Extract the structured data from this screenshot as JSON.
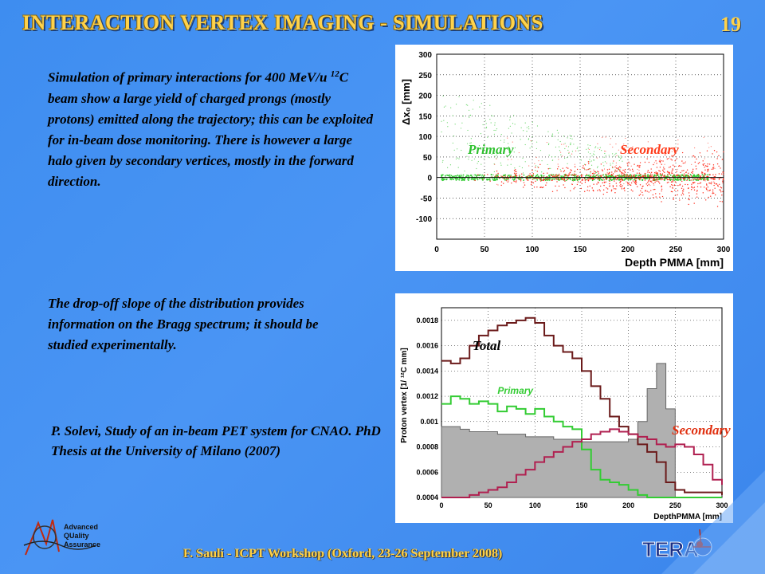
{
  "slide": {
    "title": "INTERACTION VERTEX IMAGING - SIMULATIONS",
    "page_number": "19",
    "paragraph1_before": "Simulation of primary interactions for 400 MeV/u ",
    "paragraph1_sup": "12",
    "paragraph1_after": "C beam show a large yield of charged prongs (mostly protons) emitted along the trajectory; this can be exploited for in-beam dose monitoring. There is however a large halo given by secondary vertices, mostly in the forward direction.",
    "paragraph2": "The drop-off slope of the distribution provides information on the Bragg spectrum; it should be studied experimentally.",
    "reference": "P. Solevi, Study of an in-beam PET system for CNAO. PhD Thesis at the University of Milano (2007)",
    "footer": "F. Sauli - ICPT Workshop (Oxford, 23-26 September 2008)",
    "logo_left_text": [
      "Advanced",
      "QUality",
      "Assurance"
    ],
    "logo_right_text": "TERA"
  },
  "chart_data": [
    {
      "type": "scatter",
      "xlabel": "Depth PMMA [mm]",
      "ylabel": "Δx₀ [mm]",
      "xlim": [
        0,
        300
      ],
      "ylim": [
        -150,
        300
      ],
      "xticks": [
        "0",
        "50",
        "100",
        "150",
        "200",
        "250",
        "300"
      ],
      "yticks": [
        "-100",
        "-50",
        "0",
        "50",
        "100",
        "150",
        "200",
        "250",
        "300"
      ],
      "series": [
        {
          "name": "Primary",
          "color": "#33cc33",
          "description_points": [
            [
              10,
              0
            ],
            [
              40,
              2
            ],
            [
              80,
              -1
            ],
            [
              120,
              1
            ],
            [
              160,
              0
            ],
            [
              190,
              -2
            ],
            [
              220,
              3
            ],
            [
              250,
              -1
            ],
            [
              280,
              1
            ]
          ]
        },
        {
          "name": "Secondary",
          "color": "#ff2a1a",
          "description_points": [
            [
              60,
              5
            ],
            [
              120,
              -10
            ],
            [
              180,
              12
            ],
            [
              220,
              -25
            ],
            [
              260,
              30
            ],
            [
              290,
              -15
            ]
          ]
        }
      ],
      "grid": true
    },
    {
      "type": "line",
      "xlabel": "DepthPMMA [mm]",
      "ylabel": "Proton vertex [1/ ¹²C mm]",
      "xlim": [
        0,
        300
      ],
      "ylim": [
        0.0004,
        0.0019
      ],
      "xticks": [
        "0",
        "50",
        "100",
        "150",
        "200",
        "250",
        "300"
      ],
      "yticks": [
        "0.0004",
        "0.0006",
        "0.0008",
        "0.001",
        "0.0012",
        "0.0014",
        "0.0016",
        "0.0018"
      ],
      "x": [
        0,
        10,
        20,
        30,
        40,
        50,
        60,
        70,
        80,
        90,
        100,
        110,
        120,
        130,
        140,
        150,
        160,
        170,
        180,
        190,
        200,
        210,
        220,
        230,
        240,
        250,
        260,
        270,
        280,
        290,
        300
      ],
      "series": [
        {
          "name": "Total",
          "color": "#6b1a1a",
          "values": [
            0.00148,
            0.00146,
            0.0015,
            0.0016,
            0.00168,
            0.00172,
            0.00176,
            0.00178,
            0.0018,
            0.00182,
            0.00178,
            0.00168,
            0.0016,
            0.00155,
            0.0015,
            0.0014,
            0.00128,
            0.00118,
            0.00104,
            0.00096,
            0.0009,
            0.00082,
            0.00076,
            0.00068,
            0.00052,
            0.00046,
            0.00044,
            0.00044,
            0.00044,
            0.00044,
            0.00042
          ]
        },
        {
          "name": "Primary",
          "color": "#33cc33",
          "values": [
            0.00114,
            0.0012,
            0.00118,
            0.00114,
            0.00116,
            0.00114,
            0.00108,
            0.00112,
            0.0011,
            0.00106,
            0.0011,
            0.00104,
            0.001,
            0.00096,
            0.00094,
            0.00078,
            0.00062,
            0.00054,
            0.00052,
            0.0005,
            0.00046,
            0.00042,
            0.0004,
            0.0004,
            0.0004,
            0.0004,
            0.0004,
            0.0004,
            0.0004,
            0.0004,
            0.0004
          ]
        },
        {
          "name": "Secondary",
          "color": "#b02050",
          "values": [
            0.0004,
            0.0004,
            0.0004,
            0.00042,
            0.00044,
            0.00046,
            0.00048,
            0.00052,
            0.00058,
            0.00062,
            0.00068,
            0.00072,
            0.00076,
            0.0008,
            0.00084,
            0.00086,
            0.0009,
            0.00092,
            0.00094,
            0.00092,
            0.0009,
            0.00088,
            0.00086,
            0.00082,
            0.0008,
            0.00082,
            0.0008,
            0.00074,
            0.00066,
            0.00054,
            0.0005
          ]
        },
        {
          "name": "",
          "color": "#888888",
          "style": "filled",
          "values": [
            0.00096,
            0.00096,
            0.00094,
            0.00092,
            0.00092,
            0.00092,
            0.0009,
            0.0009,
            0.0009,
            0.00088,
            0.00088,
            0.00088,
            0.00086,
            0.00086,
            0.00086,
            0.00084,
            0.00084,
            0.00084,
            0.00084,
            0.00084,
            0.00086,
            0.001,
            0.00126,
            0.00146,
            0.0011,
            0.0004,
            0.0004,
            0.0004,
            0.0004,
            0.0004,
            0.0004
          ]
        }
      ],
      "grid": true
    }
  ]
}
